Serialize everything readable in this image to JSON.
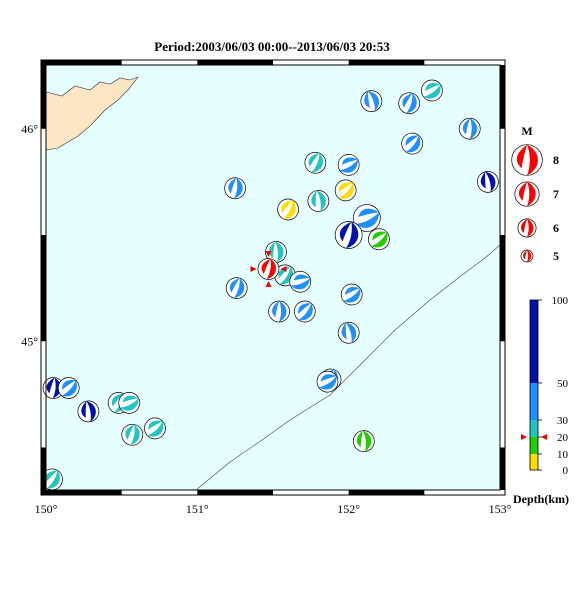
{
  "title": "Period:2003/06/03 00:00--2013/06/03 20:53",
  "map": {
    "lon_range": [
      150,
      153
    ],
    "lat_range": [
      44.3,
      46.3
    ],
    "lon_ticks": [
      {
        "value": 150,
        "label": "150°"
      },
      {
        "value": 151,
        "label": "151°"
      },
      {
        "value": 152,
        "label": "152°"
      },
      {
        "value": 153,
        "label": "153°"
      }
    ],
    "lat_ticks": [
      {
        "value": 45,
        "label": "45°"
      },
      {
        "value": 46,
        "label": "46°"
      }
    ],
    "colors": {
      "ocean": "#e6ffff",
      "land": "#fde6c4",
      "frame": "#000000"
    }
  },
  "magnitude_legend": {
    "title": "M",
    "items": [
      {
        "label": "8",
        "mag": 8
      },
      {
        "label": "7",
        "mag": 7
      },
      {
        "label": "6",
        "mag": 6
      },
      {
        "label": "5",
        "mag": 5
      }
    ]
  },
  "depth_legend": {
    "title": "Depth(km)",
    "ticks": [
      {
        "value": 100,
        "label": "100"
      },
      {
        "value": 50,
        "label": "50"
      },
      {
        "value": 30,
        "label": "30"
      },
      {
        "value": 20,
        "label": "20"
      },
      {
        "value": 10,
        "label": "10"
      },
      {
        "value": 0,
        "label": "0"
      }
    ],
    "bands": [
      {
        "from": 0,
        "to": 10,
        "color": "#ffdd00"
      },
      {
        "from": 10,
        "to": 20,
        "color": "#22cc00"
      },
      {
        "from": 20,
        "to": 30,
        "color": "#22c6c0"
      },
      {
        "from": 30,
        "to": 50,
        "color": "#1e90ff"
      },
      {
        "from": 50,
        "to": 100,
        "color": "#0010aa"
      }
    ],
    "marker_depth": 20
  },
  "main_event": {
    "lon": 151.47,
    "lat": 45.34,
    "depth": 20,
    "color": "#ff0000"
  },
  "events": [
    {
      "lon": 152.15,
      "lat": 46.13,
      "color": "#1e90ff"
    },
    {
      "lon": 152.4,
      "lat": 46.12,
      "color": "#1e90ff"
    },
    {
      "lon": 152.55,
      "lat": 46.18,
      "color": "#22c6c0"
    },
    {
      "lon": 152.8,
      "lat": 46.0,
      "color": "#1e90ff"
    },
    {
      "lon": 152.42,
      "lat": 45.93,
      "color": "#1e90ff"
    },
    {
      "lon": 152.92,
      "lat": 45.75,
      "color": "#0010aa"
    },
    {
      "lon": 151.78,
      "lat": 45.84,
      "color": "#22c6c0"
    },
    {
      "lon": 152.0,
      "lat": 45.83,
      "color": "#1e90ff"
    },
    {
      "lon": 151.25,
      "lat": 45.72,
      "color": "#1e90ff"
    },
    {
      "lon": 151.98,
      "lat": 45.71,
      "color": "#ffdd00"
    },
    {
      "lon": 151.8,
      "lat": 45.66,
      "color": "#22c6c0"
    },
    {
      "lon": 151.6,
      "lat": 45.62,
      "color": "#ffdd00"
    },
    {
      "lon": 152.12,
      "lat": 45.58,
      "color": "#1e90ff"
    },
    {
      "lon": 152.0,
      "lat": 45.5,
      "color": "#0010aa"
    },
    {
      "lon": 152.2,
      "lat": 45.48,
      "color": "#22cc00"
    },
    {
      "lon": 151.52,
      "lat": 45.42,
      "color": "#22c6c0"
    },
    {
      "lon": 151.58,
      "lat": 45.31,
      "color": "#22c6c0"
    },
    {
      "lon": 151.68,
      "lat": 45.28,
      "color": "#1e90ff"
    },
    {
      "lon": 151.26,
      "lat": 45.25,
      "color": "#1e90ff"
    },
    {
      "lon": 152.02,
      "lat": 45.22,
      "color": "#1e90ff"
    },
    {
      "lon": 151.54,
      "lat": 45.14,
      "color": "#1e90ff"
    },
    {
      "lon": 151.71,
      "lat": 45.14,
      "color": "#1e90ff"
    },
    {
      "lon": 152.0,
      "lat": 45.04,
      "color": "#1e90ff"
    },
    {
      "lon": 151.88,
      "lat": 44.82,
      "color": "#1e90ff"
    },
    {
      "lon": 151.86,
      "lat": 44.81,
      "color": "#1e90ff"
    },
    {
      "lon": 150.05,
      "lat": 44.78,
      "color": "#0010aa"
    },
    {
      "lon": 150.15,
      "lat": 44.78,
      "color": "#1e90ff"
    },
    {
      "lon": 150.28,
      "lat": 44.67,
      "color": "#0010aa"
    },
    {
      "lon": 150.48,
      "lat": 44.71,
      "color": "#22c6c0"
    },
    {
      "lon": 150.55,
      "lat": 44.71,
      "color": "#22c6c0"
    },
    {
      "lon": 150.57,
      "lat": 44.56,
      "color": "#22c6c0"
    },
    {
      "lon": 150.72,
      "lat": 44.59,
      "color": "#22c6c0"
    },
    {
      "lon": 152.1,
      "lat": 44.53,
      "color": "#22cc00"
    },
    {
      "lon": 150.04,
      "lat": 44.35,
      "color": "#22c6c0"
    }
  ]
}
